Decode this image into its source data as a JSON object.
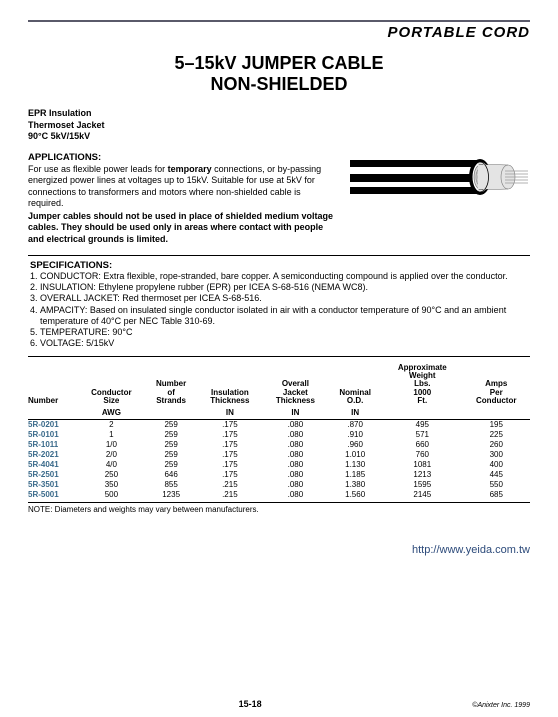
{
  "header": {
    "category": "PORTABLE CORD"
  },
  "title": {
    "line1": "5–15kV JUMPER CABLE",
    "line2": "NON-SHIELDED"
  },
  "subhead": {
    "l1": "EPR Insulation",
    "l2": "Thermoset Jacket",
    "l3": "90°C 5kV/15kV"
  },
  "applications": {
    "heading": "APPLICATIONS:",
    "body_html": "For use as flexible power leads for <b>temporary</b> connections, or by-passing energized power lines at voltages up to 15kV. Suitable for use at 5kV for connections to transformers and motors where non-shielded cable is required.",
    "warn_html": "<b>Jumper cables should not be used in place of shielded medium voltage cables. They should be used only in areas where contact with people and electrical grounds is limited.</b>"
  },
  "cable_svg": {
    "outer_fill": "#000000",
    "jacket_fill": "#333333",
    "insul_fill": "#e6e6e6",
    "core_stroke": "#9a9a9a",
    "bg": "#ffffff"
  },
  "specs": {
    "heading": "SPECIFICATIONS:",
    "items": [
      "CONDUCTOR: Extra flexible, rope-stranded, bare copper. A semiconducting compound is applied over the conductor.",
      "INSULATION: Ethylene propylene rubber (EPR) per ICEA S-68-516 (NEMA WC8).",
      "OVERALL JACKET: Red thermoset per ICEA S-68-516.",
      "AMPACITY: Based on insulated single conductor isolated in air with a conductor temperature of 90°C and an ambient temperature of 40°C per NEC Table 310-69.",
      "TEMPERATURE: 90°C",
      "VOLTAGE: 5/15kV"
    ]
  },
  "table": {
    "columns_group": [
      "Number",
      "Conductor Size",
      "Number of Strands",
      "Insulation Thickness",
      "Overall Jacket Thickness",
      "Nominal O.D.",
      "Approximate Weight Lbs. 1000 Ft.",
      "Amps Per Conductor"
    ],
    "columns_unit": [
      "",
      "AWG",
      "",
      "IN",
      "IN",
      "IN",
      "",
      ""
    ],
    "link_color": "#3a6a8a",
    "rows": [
      [
        "5R-0201",
        "2",
        "259",
        ".175",
        ".080",
        ".870",
        "495",
        "195"
      ],
      [
        "5R-0101",
        "1",
        "259",
        ".175",
        ".080",
        ".910",
        "571",
        "225"
      ],
      [
        "5R-1011",
        "1/0",
        "259",
        ".175",
        ".080",
        ".960",
        "660",
        "260"
      ],
      [
        "5R-2021",
        "2/0",
        "259",
        ".175",
        ".080",
        "1.010",
        "760",
        "300"
      ],
      [
        "5R-4041",
        "4/0",
        "259",
        ".175",
        ".080",
        "1.130",
        "1081",
        "400"
      ],
      [
        "5R-2501",
        "250",
        "646",
        ".175",
        ".080",
        "1.185",
        "1213",
        "445"
      ],
      [
        "5R-3501",
        "350",
        "855",
        ".215",
        ".080",
        "1.380",
        "1595",
        "550"
      ],
      [
        "5R-5001",
        "500",
        "1235",
        ".215",
        ".080",
        "1.560",
        "2145",
        "685"
      ]
    ]
  },
  "note": "NOTE: Diameters and weights may vary between manufacturers.",
  "url": "http://www.yeida.com.tw",
  "footer": {
    "page": "15-18",
    "copyright": "©Anixter Inc. 1999"
  }
}
